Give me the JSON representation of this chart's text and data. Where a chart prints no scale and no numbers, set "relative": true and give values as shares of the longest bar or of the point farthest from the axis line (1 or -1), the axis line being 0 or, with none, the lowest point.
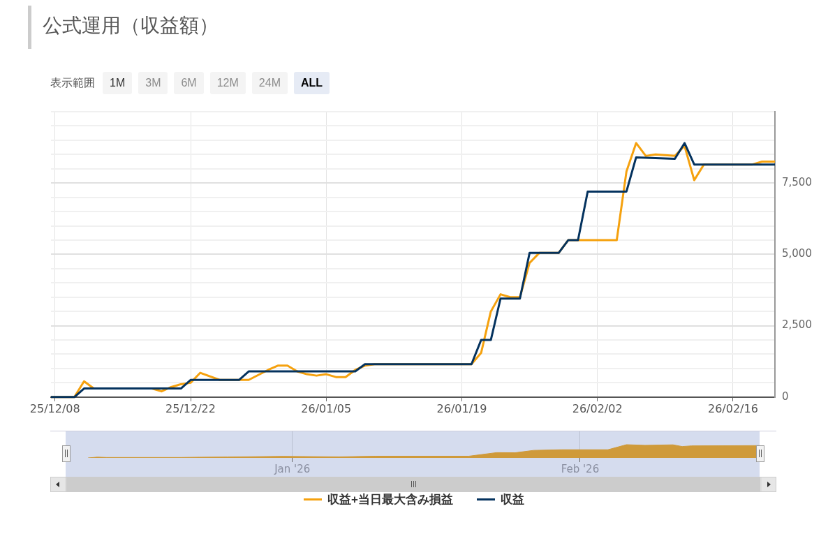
{
  "chart_data": [
    {
      "type": "line",
      "title": "公式運用（収益額）",
      "annotations": [
        "表示範囲",
        "1M",
        "3M",
        "6M",
        "12M",
        "24M",
        "ALL"
      ],
      "xlim": [
        "2025-12-07T14:00",
        "2026-02-20T08:00"
      ],
      "xticks": [
        {
          "value": "2025-12-08",
          "label": "25/12/08"
        },
        {
          "value": "2025-12-22",
          "label": "25/12/22"
        },
        {
          "value": "2026-01-05",
          "label": "26/01/05"
        },
        {
          "value": "2026-01-19",
          "label": "26/01/19"
        },
        {
          "value": "2026-02-02",
          "label": "26/02/02"
        },
        {
          "value": "2026-02-16",
          "label": "26/02/16"
        }
      ],
      "ylim": [
        0,
        10000
      ],
      "yticks": [
        0,
        {
          "value": 500,
          "label": null
        },
        {
          "value": 1000,
          "label": null
        },
        {
          "value": 1500,
          "label": null
        },
        {
          "value": 2000,
          "label": null
        },
        {
          "value": 2500,
          "label": "2,500"
        },
        {
          "value": 3000,
          "label": null
        },
        {
          "value": 3500,
          "label": null
        },
        {
          "value": 4000,
          "label": null
        },
        {
          "value": 4500,
          "label": null
        },
        {
          "value": 5000,
          "label": "5,000"
        },
        {
          "value": 5500,
          "label": null
        },
        {
          "value": 6000,
          "label": null
        },
        {
          "value": 6500,
          "label": null
        },
        {
          "value": 7000,
          "label": null
        },
        {
          "value": 7500,
          "label": "7,500"
        },
        {
          "value": 8000,
          "label": null
        },
        {
          "value": 8500,
          "label": null
        },
        {
          "value": 9000,
          "label": null
        },
        {
          "value": 9500,
          "label": null
        },
        {
          "value": 10000,
          "label": null
        }
      ],
      "grid": true,
      "legend": "bottom",
      "marker": "none",
      "line_style": "solid",
      "series": [
        {
          "name": "収益+当日最大含み損益",
          "color": "#f5a10e",
          "x": [
            "2025-12-07T14:00",
            "2025-12-10",
            "2025-12-11",
            "2025-12-12",
            "2025-12-18",
            "2025-12-19",
            "2025-12-20",
            "2025-12-21",
            "2025-12-22",
            "2025-12-23",
            "2025-12-25",
            "2025-12-28",
            "2025-12-30",
            "2025-12-31",
            "2026-01-01",
            "2026-01-02",
            "2026-01-03",
            "2026-01-04",
            "2026-01-05",
            "2026-01-06",
            "2026-01-07",
            "2026-01-08",
            "2026-01-09",
            "2026-01-10",
            "2026-01-20",
            "2026-01-21",
            "2026-01-22",
            "2026-01-23",
            "2026-01-24",
            "2026-01-25",
            "2026-01-26",
            "2026-01-27",
            "2026-01-29",
            "2026-01-30",
            "2026-02-04",
            "2026-02-05",
            "2026-02-06",
            "2026-02-07",
            "2026-02-08",
            "2026-02-10",
            "2026-02-11",
            "2026-02-12",
            "2026-02-13",
            "2026-02-18",
            "2026-02-19",
            "2026-02-20T08:00"
          ],
          "values": [
            0,
            0,
            550,
            300,
            300,
            200,
            350,
            450,
            500,
            850,
            600,
            600,
            950,
            1100,
            1100,
            900,
            800,
            750,
            800,
            700,
            700,
            950,
            1100,
            1150,
            1150,
            1550,
            3000,
            3600,
            3500,
            3500,
            4700,
            5050,
            5050,
            5500,
            5500,
            7900,
            8900,
            8450,
            8500,
            8450,
            8800,
            7600,
            8150,
            8150,
            8250,
            8250
          ]
        },
        {
          "name": "収益",
          "color": "#04325e",
          "x": [
            "2025-12-07T14:00",
            "2025-12-10",
            "2025-12-11",
            "2025-12-21",
            "2025-12-22",
            "2025-12-27",
            "2025-12-28",
            "2026-01-08",
            "2026-01-09",
            "2026-01-20",
            "2026-01-21",
            "2026-01-22",
            "2026-01-23",
            "2026-01-25",
            "2026-01-26",
            "2026-01-29",
            "2026-01-30",
            "2026-01-31",
            "2026-02-01",
            "2026-02-05",
            "2026-02-06",
            "2026-02-10",
            "2026-02-11",
            "2026-02-12",
            "2026-02-20T08:00"
          ],
          "values": [
            0,
            0,
            300,
            300,
            600,
            600,
            900,
            900,
            1150,
            1150,
            2000,
            2000,
            3450,
            3450,
            5050,
            5050,
            5500,
            5500,
            7200,
            7200,
            8400,
            8350,
            8900,
            8150,
            8150
          ]
        }
      ]
    },
    {
      "type": "area",
      "relative": true,
      "color": "#cf9a3a",
      "grid": "x",
      "tick_labels": "x",
      "xlim": [
        "2025-12-07T14:00",
        "2026-02-20T08:00"
      ],
      "xticks": [
        {
          "value": "2026-01-01",
          "label": "Jan '26"
        },
        {
          "value": "2026-02-01",
          "label": "Feb '26"
        }
      ],
      "x": [
        "2025-12-10",
        "2025-12-11",
        "2025-12-12",
        "2025-12-20",
        "2025-12-22",
        "2025-12-25",
        "2025-12-31",
        "2026-01-06",
        "2026-01-10",
        "2026-01-20",
        "2026-01-23",
        "2026-01-25",
        "2026-01-27",
        "2026-01-30",
        "2026-02-04",
        "2026-02-06",
        "2026-02-08",
        "2026-02-11",
        "2026-02-12",
        "2026-02-13",
        "2026-02-20T08:00"
      ],
      "values": [
        0,
        0.06,
        0.035,
        0.035,
        0.055,
        0.07,
        0.12,
        0.08,
        0.13,
        0.13,
        0.4,
        0.39,
        0.57,
        0.62,
        0.62,
        1,
        0.95,
        0.99,
        0.86,
        0.91,
        0.93
      ]
    }
  ]
}
